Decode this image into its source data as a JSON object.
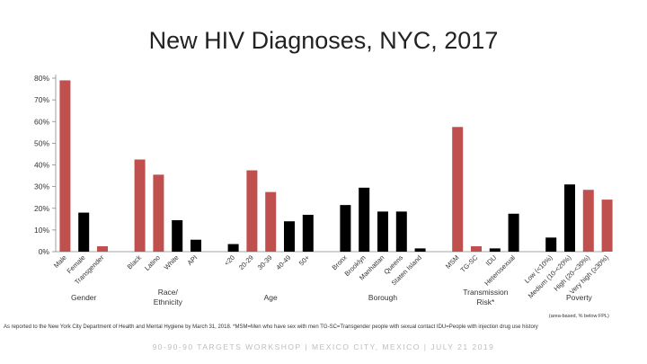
{
  "chart_data": {
    "type": "bar",
    "title": "New HIV Diagnoses, NYC, 2017",
    "ylim": [
      0,
      80
    ],
    "y_ticks": [
      "0%",
      "10%",
      "20%",
      "30%",
      "40%",
      "50%",
      "60%",
      "70%",
      "80%"
    ],
    "groups": [
      {
        "label": "Gender",
        "bars": [
          {
            "category": "Male",
            "value": 79,
            "color": "#c0504d"
          },
          {
            "category": "Female",
            "value": 18,
            "color": "#000000"
          },
          {
            "category": "Transgender",
            "value": 2.5,
            "color": "#c0504d"
          }
        ]
      },
      {
        "label": "Race/ Ethnicity",
        "bars": [
          {
            "category": "Black",
            "value": 42.5,
            "color": "#c0504d"
          },
          {
            "category": "Latino",
            "value": 35.5,
            "color": "#c0504d"
          },
          {
            "category": "White",
            "value": 14.5,
            "color": "#000000"
          },
          {
            "category": "API",
            "value": 5.5,
            "color": "#000000"
          }
        ]
      },
      {
        "label": "Age",
        "bars": [
          {
            "category": "<20",
            "value": 3.5,
            "color": "#000000"
          },
          {
            "category": "20-29",
            "value": 37.5,
            "color": "#c0504d"
          },
          {
            "category": "30-39",
            "value": 27.5,
            "color": "#c0504d"
          },
          {
            "category": "40-49",
            "value": 14,
            "color": "#000000"
          },
          {
            "category": "50+",
            "value": 17,
            "color": "#000000"
          }
        ]
      },
      {
        "label": "Borough",
        "bars": [
          {
            "category": "Bronx",
            "value": 21.5,
            "color": "#000000"
          },
          {
            "category": "Brooklyn",
            "value": 29.5,
            "color": "#000000"
          },
          {
            "category": "Manhattan",
            "value": 18.5,
            "color": "#000000"
          },
          {
            "category": "Queens",
            "value": 18.5,
            "color": "#000000"
          },
          {
            "category": "Staten Island",
            "value": 1.5,
            "color": "#000000"
          }
        ]
      },
      {
        "label": "Transmission Risk*",
        "bars": [
          {
            "category": "MSM",
            "value": 57.5,
            "color": "#c0504d"
          },
          {
            "category": "TG-SC",
            "value": 2.5,
            "color": "#c0504d"
          },
          {
            "category": "IDU",
            "value": 1.5,
            "color": "#000000"
          },
          {
            "category": "Heterosexual",
            "value": 17.5,
            "color": "#000000"
          }
        ]
      },
      {
        "label": "Poverty",
        "sublabel": "(area-based, % below FPL)",
        "bars": [
          {
            "category": "Low (<10%)",
            "value": 6.5,
            "color": "#000000"
          },
          {
            "category": "Medium (10-<20%)",
            "value": 31,
            "color": "#000000"
          },
          {
            "category": "High (20-<30%)",
            "value": 28.5,
            "color": "#c0504d"
          },
          {
            "category": "Very high (≥30%)",
            "value": 24,
            "color": "#c0504d"
          }
        ]
      }
    ]
  },
  "footnote": "As reported to the New York City Department of Health and Mental Hygiene by March 31, 2018. *MSM=Men who have sex with men TG-SC=Transgender people with sexual contact IDU=People with injection drug use history",
  "footer": "90-90-90 TARGETS WORKSHOP  |  MEXICO CITY, MEXICO  |  JULY 21 2019"
}
